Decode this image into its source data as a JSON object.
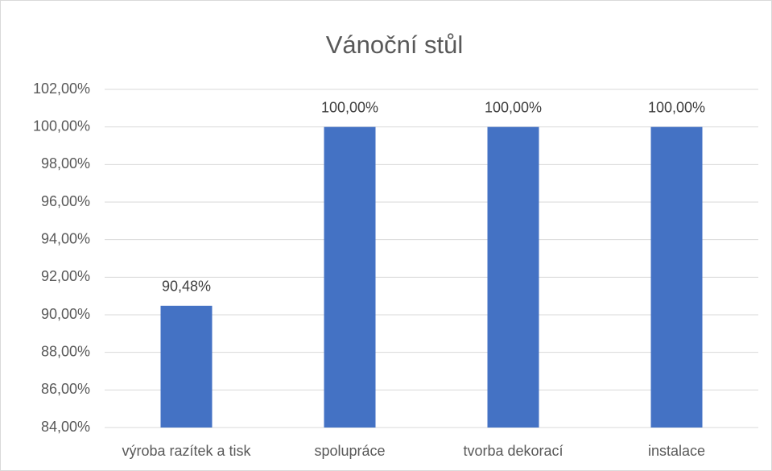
{
  "chart_data": {
    "type": "bar",
    "title": "Vánoční stůl",
    "categories": [
      "výroba razítek a tisk",
      "spolupráce",
      "tvorba dekorací",
      "instalace"
    ],
    "values": [
      90.48,
      100,
      100,
      100
    ],
    "value_labels": [
      "90,48%",
      "100,00%",
      "100,00%",
      "100,00%"
    ],
    "color": "#4472c4",
    "ylim": [
      84,
      102
    ],
    "yticks": [
      {
        "value": 84,
        "label": "84,00%"
      },
      {
        "value": 86,
        "label": "86,00%"
      },
      {
        "value": 88,
        "label": "88,00%"
      },
      {
        "value": 90,
        "label": "90,00%"
      },
      {
        "value": 92,
        "label": "92,00%"
      },
      {
        "value": 94,
        "label": "94,00%"
      },
      {
        "value": 96,
        "label": "96,00%"
      },
      {
        "value": 98,
        "label": "98,00%"
      },
      {
        "value": 100,
        "label": "100,00%"
      },
      {
        "value": 102,
        "label": "102,00%"
      }
    ],
    "grid": true
  }
}
